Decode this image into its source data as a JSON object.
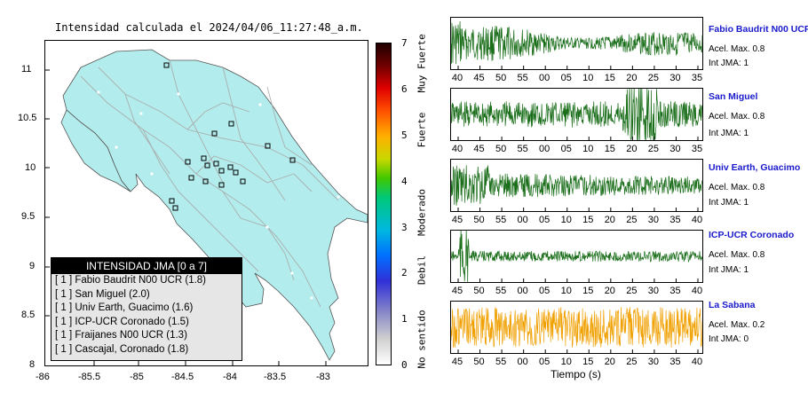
{
  "map": {
    "title": "Intensidad calculada el 2024/04/06_11:27:48_a.m.",
    "y_ticks": [
      "11",
      "10.5",
      "10",
      "9.5",
      "9",
      "8.5",
      "8"
    ],
    "x_ticks": [
      "-86",
      "-85.5",
      "-85",
      "-84.5",
      "-84",
      "-83.5",
      "-83"
    ],
    "land_color": "#b3ecec"
  },
  "legend": {
    "title": "INTENSIDAD JMA [0 a 7]",
    "items": [
      "[ 1 ]  Fabio Baudrit N00 UCR (1.8)",
      "[ 1 ]  San Miguel (2.0)",
      "[ 1 ]  Univ Earth, Guacimo (1.6)",
      "[ 1 ]  ICP-UCR Coronado (1.5)",
      "[ 1 ]  Fraijanes N00 UCR (1.3)",
      "[ 1 ]  Cascajal, Coronado (1.8)"
    ]
  },
  "colorbar": {
    "ticks": [
      "7",
      "6",
      "5",
      "4",
      "3",
      "2",
      "1",
      "0"
    ],
    "categories": [
      "Muy Fuerte",
      "Fuerte",
      "Moderado",
      "Debil",
      "No sentido"
    ]
  },
  "stations": [
    {
      "name": "Fabio Baudrit N00 UCR",
      "accel": "Acel. Max. 0.8",
      "jma": "Int JMA: 1",
      "color": "#1a6e1a",
      "ticks": [
        "40",
        "45",
        "50",
        "55",
        "00",
        "05",
        "10",
        "15",
        "20",
        "25",
        "30",
        "35"
      ]
    },
    {
      "name": "San Miguel",
      "accel": "Acel. Max. 0.8",
      "jma": "Int JMA: 1",
      "color": "#1a6e1a",
      "ticks": [
        "40",
        "45",
        "50",
        "55",
        "00",
        "05",
        "10",
        "15",
        "20",
        "25",
        "30",
        "35"
      ]
    },
    {
      "name": "Univ Earth, Guacimo",
      "accel": "Acel. Max. 0.8",
      "jma": "Int JMA: 1",
      "color": "#1a6e1a",
      "ticks": [
        "45",
        "50",
        "55",
        "00",
        "05",
        "10",
        "15",
        "20",
        "25",
        "30",
        "35",
        "40"
      ]
    },
    {
      "name": "ICP-UCR Coronado",
      "accel": "Acel. Max. 0.8",
      "jma": "Int JMA: 1",
      "color": "#1a6e1a",
      "ticks": [
        "45",
        "50",
        "55",
        "00",
        "05",
        "10",
        "15",
        "20",
        "25",
        "30",
        "35",
        "40"
      ]
    },
    {
      "name": "La Sabana",
      "accel": "Acel. Max. 0.2",
      "jma": "Int JMA: 0",
      "color": "#f0a000",
      "ticks": [
        "45",
        "50",
        "55",
        "00",
        "05",
        "10",
        "15",
        "20",
        "25",
        "30",
        "35",
        "40"
      ]
    }
  ],
  "xaxis_title": "Tiempo (s)"
}
